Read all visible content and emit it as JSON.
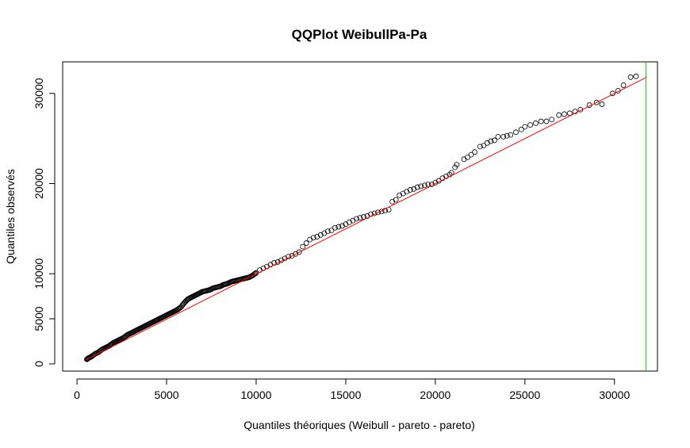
{
  "chart_data": {
    "type": "scatter",
    "title": "QQPlot WeibullPa-Pa",
    "xlabel": "Quantiles théoriques (Weibull - pareto - pareto)",
    "ylabel": "Quantiles observés",
    "xlim": [
      -800,
      32400
    ],
    "ylim": [
      -800,
      33500
    ],
    "x_ticks": [
      0,
      5000,
      10000,
      15000,
      20000,
      25000,
      30000
    ],
    "x_tick_labels": [
      "0",
      "5000",
      "10000",
      "15000",
      "20000",
      "25000",
      "30000"
    ],
    "y_ticks": [
      0,
      5000,
      10000,
      20000,
      30000
    ],
    "y_tick_labels": [
      "0",
      "5000",
      "10000",
      "20000",
      "30000"
    ],
    "colors": {
      "points": "#000000",
      "fit_line": "#ff0000",
      "vertical_line": "#00cd00"
    },
    "fit_line": {
      "x": [
        500,
        31800
      ],
      "y": [
        450,
        31800
      ]
    },
    "vertical_line_x": 31750,
    "series": [
      {
        "points": [
          [
            31200,
            31900
          ],
          [
            30900,
            31800
          ],
          [
            30500,
            30900
          ],
          [
            30200,
            30300
          ],
          [
            29900,
            30000
          ],
          [
            29300,
            28800
          ],
          [
            29000,
            29000
          ],
          [
            28600,
            28700
          ],
          [
            28100,
            28200
          ],
          [
            27800,
            28000
          ],
          [
            27500,
            27800
          ],
          [
            27200,
            27700
          ],
          [
            26900,
            27600
          ],
          [
            26500,
            27100
          ],
          [
            26200,
            26900
          ],
          [
            25900,
            26900
          ],
          [
            25600,
            26700
          ],
          [
            25300,
            26500
          ],
          [
            25000,
            26300
          ],
          [
            24800,
            26000
          ],
          [
            24500,
            25700
          ],
          [
            24200,
            25400
          ],
          [
            24000,
            25300
          ],
          [
            23800,
            25200
          ],
          [
            23500,
            25200
          ],
          [
            23300,
            24800
          ],
          [
            23100,
            24700
          ],
          [
            22900,
            24500
          ],
          [
            22700,
            24200
          ],
          [
            22500,
            24100
          ],
          [
            22200,
            23500
          ],
          [
            22000,
            23200
          ],
          [
            21800,
            22900
          ],
          [
            21600,
            22700
          ],
          [
            21200,
            22100
          ],
          [
            21100,
            21800
          ],
          [
            20900,
            21200
          ],
          [
            20800,
            21000
          ],
          [
            20600,
            20800
          ],
          [
            20400,
            20600
          ],
          [
            20200,
            20300
          ],
          [
            20000,
            20100
          ],
          [
            19800,
            19900
          ],
          [
            19600,
            19900
          ],
          [
            19400,
            19800
          ],
          [
            19200,
            19700
          ],
          [
            19000,
            19600
          ],
          [
            18800,
            19400
          ],
          [
            18600,
            19300
          ],
          [
            18400,
            19100
          ],
          [
            18200,
            18900
          ],
          [
            18000,
            18700
          ],
          [
            17800,
            18200
          ],
          [
            17600,
            18000
          ],
          [
            17400,
            17100
          ],
          [
            17200,
            17000
          ],
          [
            17000,
            16900
          ],
          [
            16800,
            16800
          ],
          [
            16600,
            16700
          ],
          [
            16400,
            16600
          ],
          [
            16200,
            16400
          ],
          [
            16000,
            16300
          ],
          [
            15800,
            16200
          ],
          [
            15600,
            16100
          ],
          [
            15400,
            15900
          ],
          [
            15200,
            15700
          ],
          [
            15000,
            15500
          ],
          [
            14800,
            15300
          ],
          [
            14600,
            15200
          ],
          [
            14400,
            15100
          ],
          [
            14200,
            14800
          ],
          [
            14000,
            14700
          ],
          [
            13800,
            14500
          ],
          [
            13600,
            14300
          ],
          [
            13400,
            14100
          ],
          [
            13200,
            14000
          ],
          [
            13000,
            13800
          ],
          [
            12800,
            13400
          ],
          [
            12600,
            13000
          ],
          [
            12400,
            12400
          ],
          [
            12200,
            12200
          ],
          [
            12000,
            12000
          ],
          [
            11800,
            11900
          ],
          [
            11600,
            11700
          ],
          [
            11400,
            11500
          ],
          [
            11200,
            11300
          ],
          [
            11000,
            11200
          ],
          [
            10800,
            11000
          ],
          [
            10600,
            10800
          ],
          [
            10400,
            10600
          ],
          [
            10200,
            10400
          ],
          [
            10000,
            10100
          ],
          [
            9800,
            9800
          ],
          [
            9600,
            9600
          ],
          [
            9400,
            9500
          ],
          [
            9200,
            9400
          ],
          [
            9000,
            9300
          ],
          [
            8800,
            9200
          ],
          [
            8600,
            9100
          ],
          [
            8400,
            8900
          ],
          [
            8200,
            8800
          ],
          [
            8000,
            8600
          ],
          [
            7800,
            8500
          ],
          [
            7600,
            8400
          ],
          [
            7400,
            8200
          ],
          [
            7200,
            8100
          ],
          [
            7000,
            8000
          ],
          [
            6800,
            7800
          ],
          [
            6600,
            7600
          ],
          [
            6400,
            7400
          ],
          [
            6200,
            7200
          ],
          [
            6000,
            6800
          ],
          [
            5800,
            6300
          ],
          [
            5600,
            6000
          ],
          [
            5400,
            5800
          ],
          [
            5200,
            5600
          ],
          [
            5000,
            5400
          ],
          [
            4800,
            5200
          ],
          [
            4600,
            5000
          ],
          [
            4400,
            4800
          ],
          [
            4200,
            4600
          ],
          [
            4000,
            4400
          ],
          [
            3800,
            4200
          ],
          [
            3600,
            4000
          ],
          [
            3400,
            3800
          ],
          [
            3200,
            3600
          ],
          [
            3000,
            3400
          ],
          [
            2800,
            3200
          ],
          [
            2600,
            2900
          ],
          [
            2400,
            2700
          ],
          [
            2200,
            2500
          ],
          [
            2000,
            2300
          ],
          [
            1800,
            2000
          ],
          [
            1600,
            1800
          ],
          [
            1400,
            1600
          ],
          [
            1200,
            1300
          ],
          [
            1000,
            1100
          ],
          [
            800,
            800
          ],
          [
            650,
            650
          ],
          [
            550,
            500
          ]
        ]
      }
    ]
  }
}
